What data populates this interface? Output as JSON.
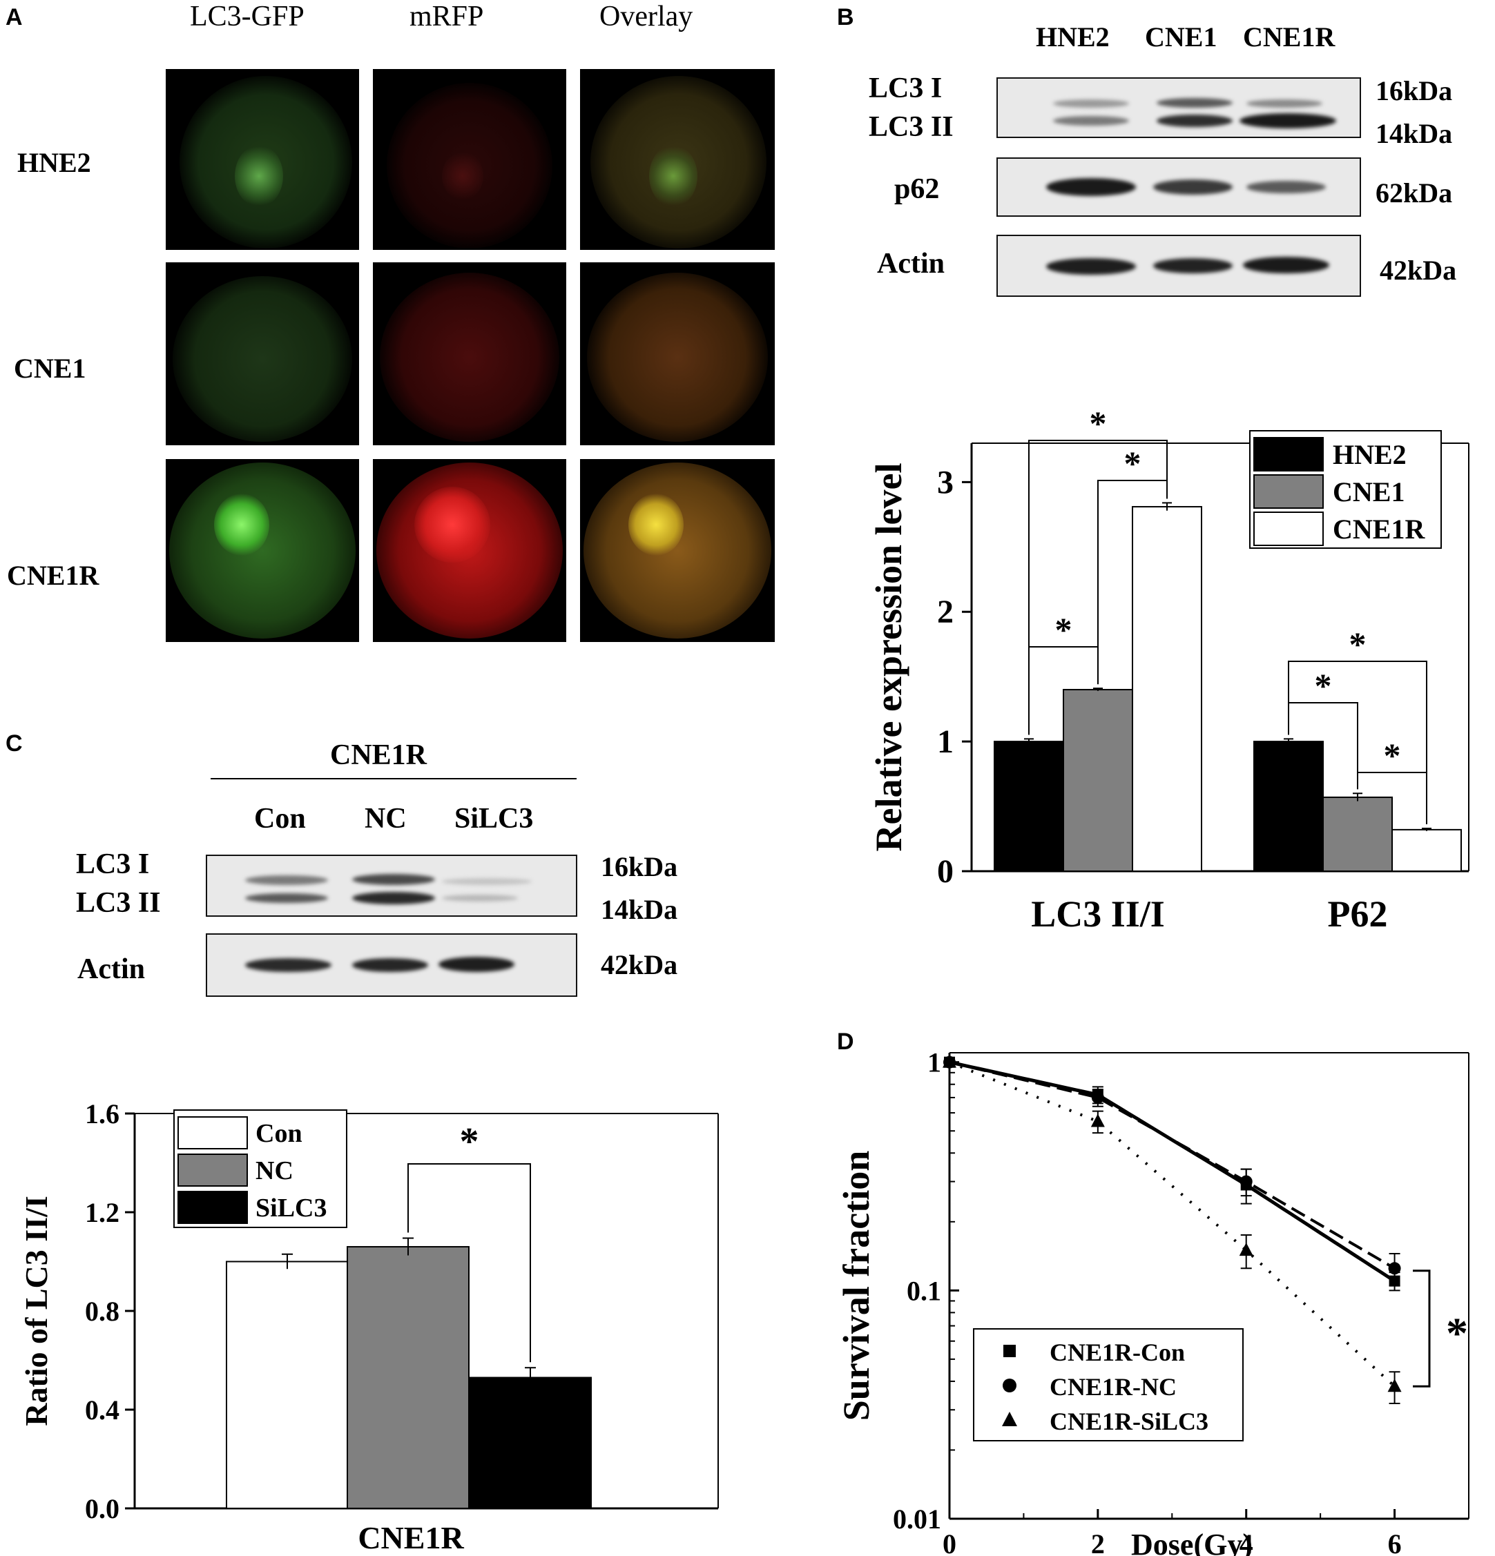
{
  "panel_A": {
    "letter": "A",
    "columns": [
      "LC3-GFP",
      "mRFP",
      "Overlay"
    ],
    "rows": [
      "HNE2",
      "CNE1",
      "CNE1R"
    ]
  },
  "panel_B": {
    "letter": "B",
    "blot": {
      "lanes": [
        "HNE2",
        "CNE1",
        "CNE1R"
      ],
      "rows": [
        {
          "labels": [
            "LC3 I",
            "LC3 II"
          ],
          "sizes": [
            "16kDa",
            "14kDa"
          ]
        },
        {
          "labels": [
            "p62"
          ],
          "sizes": [
            "62kDa"
          ]
        },
        {
          "labels": [
            "Actin"
          ],
          "sizes": [
            "42kDa"
          ]
        }
      ]
    }
  },
  "panel_C": {
    "letter": "C",
    "blot": {
      "group_label": "CNE1R",
      "lanes": [
        "Con",
        "NC",
        "SiLC3"
      ],
      "rows": [
        {
          "labels": [
            "LC3 I",
            "LC3 II"
          ],
          "sizes": [
            "16kDa",
            "14kDa"
          ]
        },
        {
          "labels": [
            "Actin"
          ],
          "sizes": [
            "42kDa"
          ]
        }
      ]
    }
  },
  "panel_D": {
    "letter": "D"
  },
  "significance_mark": "*",
  "chart_data": [
    {
      "id": "B-bar",
      "type": "bar",
      "categories": [
        "LC3 II/I",
        "P62"
      ],
      "series": [
        {
          "name": "HNE2",
          "values": [
            1.0,
            1.0
          ],
          "errors": [
            0.02,
            0.02
          ],
          "color": "#000000"
        },
        {
          "name": "CNE1",
          "values": [
            1.4,
            0.57
          ],
          "errors": [
            0.01,
            0.03
          ],
          "color": "#808080"
        },
        {
          "name": "CNE1R",
          "values": [
            2.81,
            0.32
          ],
          "errors": [
            0.03,
            0.01
          ],
          "color": "#ffffff"
        }
      ],
      "ylabel": "Relative expression level",
      "ylim": [
        0,
        3.3
      ],
      "yticks": [
        "0",
        "1",
        "2",
        "3"
      ],
      "legend": "top-right",
      "significance": [
        {
          "category": "LC3 II/I",
          "pair": [
            "HNE2",
            "CNE1"
          ],
          "mark": "*"
        },
        {
          "category": "LC3 II/I",
          "pair": [
            "HNE2",
            "CNE1R"
          ],
          "mark": "*"
        },
        {
          "category": "LC3 II/I",
          "pair": [
            "CNE1",
            "CNE1R"
          ],
          "mark": "*"
        },
        {
          "category": "P62",
          "pair": [
            "HNE2",
            "CNE1"
          ],
          "mark": "*"
        },
        {
          "category": "P62",
          "pair": [
            "HNE2",
            "CNE1R"
          ],
          "mark": "*"
        },
        {
          "category": "P62",
          "pair": [
            "CNE1",
            "CNE1R"
          ],
          "mark": "*"
        }
      ]
    },
    {
      "id": "C-bar",
      "type": "bar",
      "categories": [
        "CNE1R"
      ],
      "series": [
        {
          "name": "Con",
          "values": [
            1.0
          ],
          "errors": [
            0.03
          ],
          "color": "#ffffff"
        },
        {
          "name": "NC",
          "values": [
            1.06
          ],
          "errors": [
            0.035
          ],
          "color": "#808080"
        },
        {
          "name": "SiLC3",
          "values": [
            0.53
          ],
          "errors": [
            0.04
          ],
          "color": "#000000"
        }
      ],
      "ylabel": "Ratio of LC3 II/I",
      "ylim": [
        0,
        1.6
      ],
      "yticks": [
        "0.0",
        "0.4",
        "0.8",
        "1.2",
        "1.6"
      ],
      "legend": "top-left",
      "significance": [
        {
          "pair": [
            "NC",
            "SiLC3"
          ],
          "mark": "*"
        }
      ]
    },
    {
      "id": "D-line",
      "type": "scatter",
      "xlabel": "Dose(Gy)",
      "ylabel": "Survival fraction",
      "xlim": [
        0,
        7
      ],
      "ylim": [
        0.01,
        1.1
      ],
      "yscale": "log",
      "xticks": [
        "0",
        "2",
        "4",
        "6"
      ],
      "yticks": [
        "0.01",
        "0.1",
        "1"
      ],
      "legend": "bottom-left",
      "series": [
        {
          "name": "CNE1R-Con",
          "marker": "square",
          "line": "solid",
          "x": [
            0,
            2,
            4,
            6
          ],
          "y": [
            1.0,
            0.72,
            0.29,
            0.11
          ],
          "err": [
            0.02,
            0.06,
            0.05,
            0.01
          ]
        },
        {
          "name": "CNE1R-NC",
          "marker": "circle",
          "line": "dashed",
          "x": [
            0,
            2,
            4,
            6
          ],
          "y": [
            1.0,
            0.7,
            0.3,
            0.125
          ],
          "err": [
            0.02,
            0.06,
            0.04,
            0.02
          ]
        },
        {
          "name": "CNE1R-SiLC3",
          "marker": "triangle",
          "line": "dotted",
          "x": [
            0,
            2,
            4,
            6
          ],
          "y": [
            1.0,
            0.55,
            0.15,
            0.038
          ],
          "err": [
            0.02,
            0.06,
            0.025,
            0.006
          ]
        }
      ],
      "significance": {
        "mark": "*"
      }
    }
  ]
}
